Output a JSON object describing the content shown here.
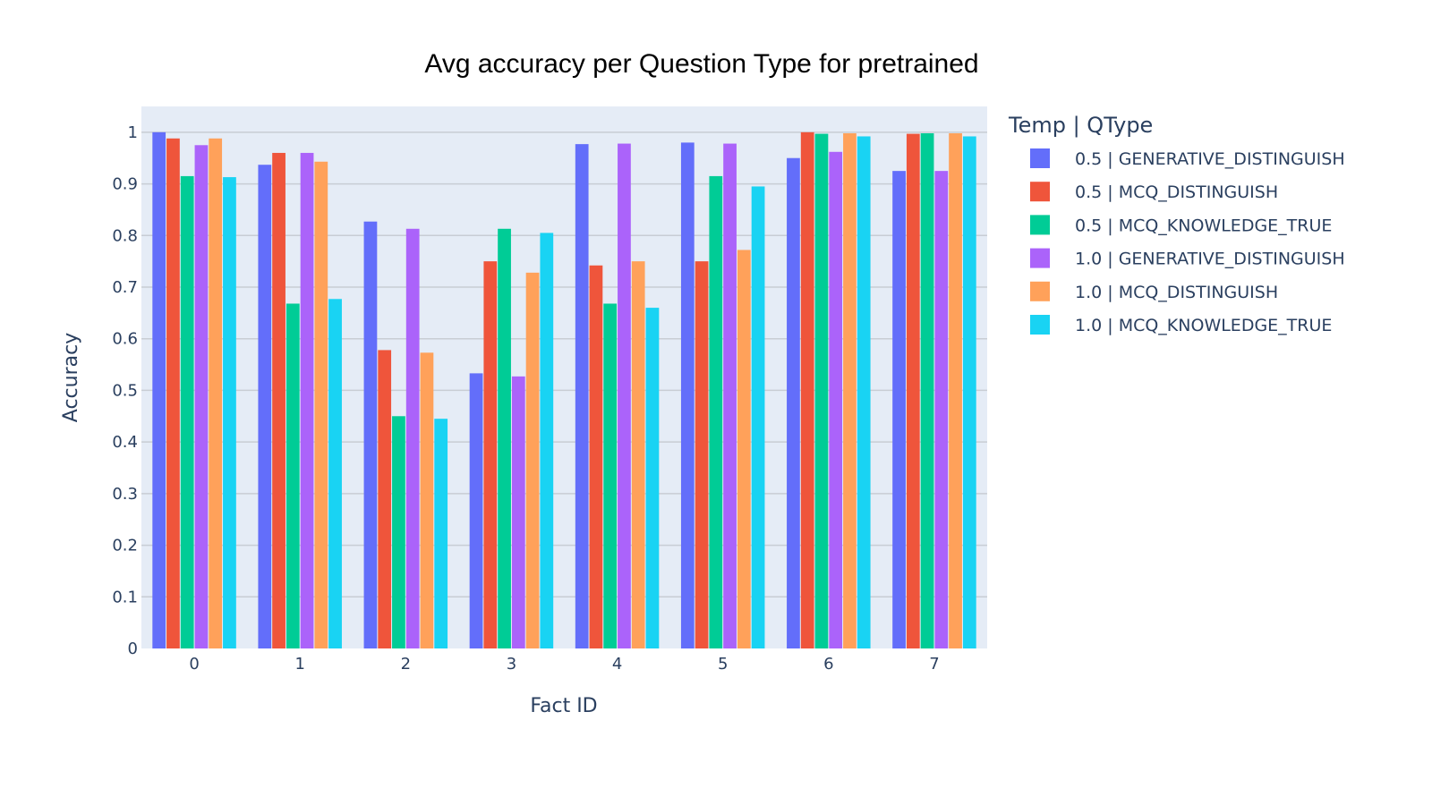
{
  "chart_data": {
    "type": "bar",
    "title": "Avg accuracy per Question Type for pretrained",
    "xlabel": "Fact ID",
    "ylabel": "Accuracy",
    "categories": [
      "0",
      "1",
      "2",
      "3",
      "4",
      "5",
      "6",
      "7"
    ],
    "ylim": [
      0,
      1.05
    ],
    "yticks": [
      0,
      0.1,
      0.2,
      0.3,
      0.4,
      0.5,
      0.6,
      0.7,
      0.8,
      0.9,
      1
    ],
    "ytick_labels": [
      "0",
      "0.1",
      "0.2",
      "0.3",
      "0.4",
      "0.5",
      "0.6",
      "0.7",
      "0.8",
      "0.9",
      "1"
    ],
    "grid": true,
    "legend_title": "Temp | QType",
    "legend_position": "right",
    "series": [
      {
        "name": "0.5 | GENERATIVE_DISTINGUISH",
        "color": "#636efa",
        "values": [
          1.0,
          0.937,
          0.827,
          0.533,
          0.977,
          0.98,
          0.95,
          0.925
        ]
      },
      {
        "name": "0.5 | MCQ_DISTINGUISH",
        "color": "#ef553b",
        "values": [
          0.988,
          0.96,
          0.578,
          0.75,
          0.742,
          0.75,
          1.0,
          0.997
        ]
      },
      {
        "name": "0.5 | MCQ_KNOWLEDGE_TRUE",
        "color": "#00cc96",
        "values": [
          0.915,
          0.668,
          0.45,
          0.813,
          0.668,
          0.915,
          0.997,
          0.998
        ]
      },
      {
        "name": "1.0 | GENERATIVE_DISTINGUISH",
        "color": "#ab63fa",
        "values": [
          0.975,
          0.96,
          0.813,
          0.527,
          0.978,
          0.978,
          0.962,
          0.925
        ]
      },
      {
        "name": "1.0 | MCQ_DISTINGUISH",
        "color": "#ffa15a",
        "values": [
          0.988,
          0.943,
          0.573,
          0.728,
          0.75,
          0.772,
          0.998,
          0.998
        ]
      },
      {
        "name": "1.0 | MCQ_KNOWLEDGE_TRUE",
        "color": "#19d3f3",
        "values": [
          0.913,
          0.677,
          0.445,
          0.805,
          0.66,
          0.895,
          0.992,
          0.992
        ]
      }
    ]
  },
  "colors": {
    "plot_background": "#e5ecf6",
    "grid": "#c8cdd4",
    "text": "#2a3f5f"
  }
}
